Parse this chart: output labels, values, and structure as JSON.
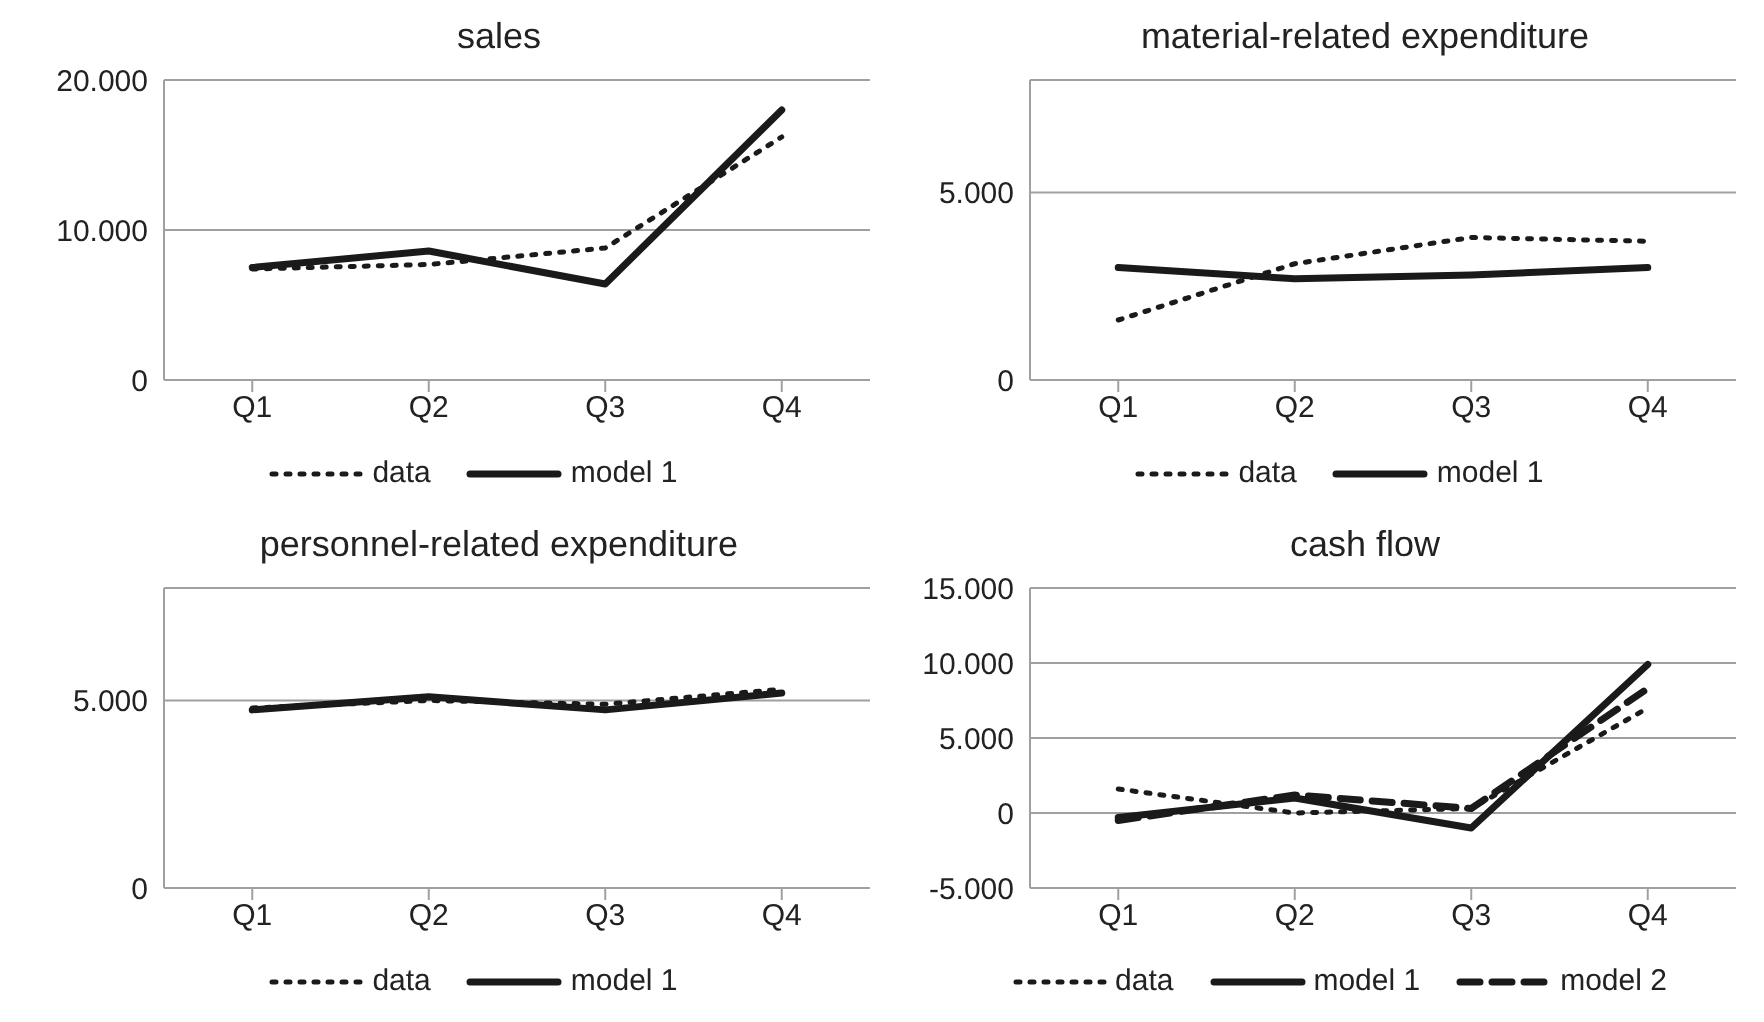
{
  "chart_data": [
    {
      "type": "line",
      "title": "sales",
      "categories": [
        "Q1",
        "Q2",
        "Q3",
        "Q4"
      ],
      "ylim": [
        0,
        20000
      ],
      "yticks": [
        {
          "value": 0,
          "label": "0"
        },
        {
          "value": 10000,
          "label": "10.000"
        },
        {
          "value": 20000,
          "label": "20.000"
        }
      ],
      "grid": "y",
      "legend": "bottom",
      "marker": "none",
      "series": [
        {
          "name": "data",
          "color": "#1a1a1a",
          "line_style": "dotted",
          "values": [
            7400,
            7700,
            8800,
            16200
          ]
        },
        {
          "name": "model 1",
          "color": "#1a1a1a",
          "line_style": "solid",
          "values": [
            7500,
            8600,
            6400,
            18000
          ]
        }
      ]
    },
    {
      "type": "line",
      "title": "material-related expenditure",
      "categories": [
        "Q1",
        "Q2",
        "Q3",
        "Q4"
      ],
      "ylim": [
        0,
        8000
      ],
      "yticks": [
        {
          "value": 0,
          "label": "0"
        },
        {
          "value": 5000,
          "label": "5.000"
        }
      ],
      "grid": "y",
      "legend": "bottom",
      "marker": "none",
      "series": [
        {
          "name": "data",
          "color": "#1a1a1a",
          "line_style": "dotted",
          "values": [
            1600,
            3100,
            3800,
            3700
          ]
        },
        {
          "name": "model 1",
          "color": "#1a1a1a",
          "line_style": "solid",
          "values": [
            3000,
            2700,
            2800,
            3000
          ]
        }
      ]
    },
    {
      "type": "line",
      "title": "personnel-related expenditure",
      "categories": [
        "Q1",
        "Q2",
        "Q3",
        "Q4"
      ],
      "ylim": [
        0,
        8000
      ],
      "yticks": [
        {
          "value": 0,
          "label": "0"
        },
        {
          "value": 5000,
          "label": "5.000"
        }
      ],
      "grid": "y",
      "legend": "bottom",
      "marker": "none",
      "series": [
        {
          "name": "data",
          "color": "#1a1a1a",
          "line_style": "dotted",
          "values": [
            4800,
            5000,
            4900,
            5300
          ]
        },
        {
          "name": "model 1",
          "color": "#1a1a1a",
          "line_style": "solid",
          "values": [
            4750,
            5100,
            4750,
            5200
          ]
        }
      ]
    },
    {
      "type": "line",
      "title": "cash flow",
      "categories": [
        "Q1",
        "Q2",
        "Q3",
        "Q4"
      ],
      "ylim": [
        -5000,
        15000
      ],
      "yticks": [
        {
          "value": -5000,
          "label": "-5.000"
        },
        {
          "value": 0,
          "label": "0"
        },
        {
          "value": 5000,
          "label": "5.000"
        },
        {
          "value": 10000,
          "label": "10.000"
        },
        {
          "value": 15000,
          "label": "15.000"
        }
      ],
      "grid": "y",
      "legend": "bottom",
      "marker": "none",
      "series": [
        {
          "name": "data",
          "color": "#1a1a1a",
          "line_style": "dotted",
          "values": [
            1600,
            0,
            300,
            7000
          ]
        },
        {
          "name": "model 1",
          "color": "#1a1a1a",
          "line_style": "solid",
          "values": [
            -300,
            1000,
            -1000,
            9900
          ]
        },
        {
          "name": "model 2",
          "color": "#1a1a1a",
          "line_style": "dashed",
          "values": [
            -500,
            1200,
            300,
            8300
          ]
        }
      ]
    }
  ]
}
